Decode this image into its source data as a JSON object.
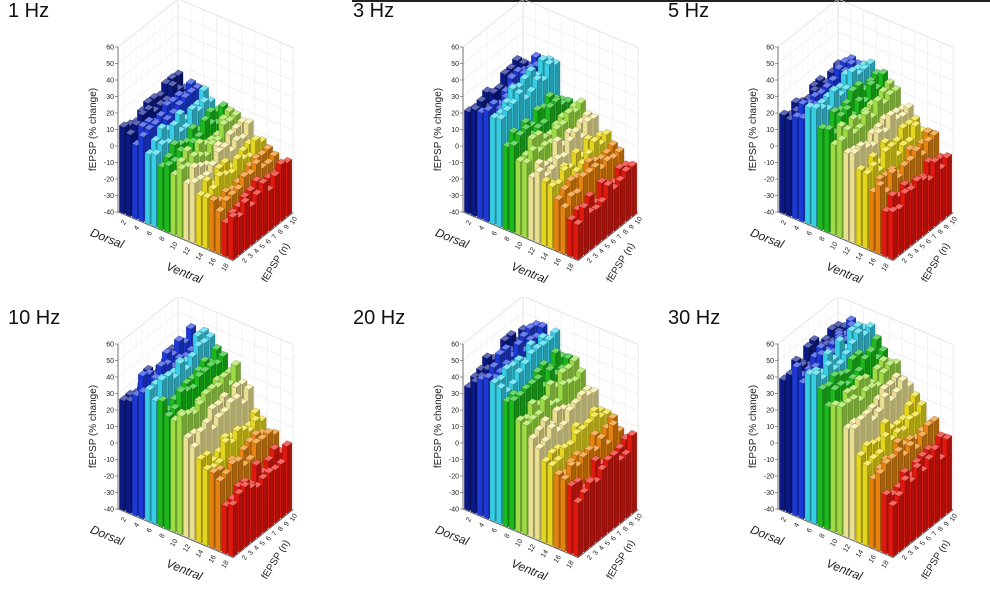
{
  "figure": {
    "panel_titles": [
      "1 Hz",
      "3 Hz",
      "5 Hz",
      "10 Hz",
      "20 Hz",
      "30 Hz"
    ]
  },
  "chart_data": {
    "type": "bar3d",
    "title": "",
    "axes": {
      "z_label": "fEPSP (% change)",
      "z_ticks": [
        "60",
        "50",
        "40",
        "30",
        "20",
        "10",
        "0",
        "-10",
        "-20",
        "-30",
        "-40"
      ],
      "zlim": [
        -40,
        60
      ],
      "x_ticks": [
        "2",
        "4",
        "6",
        "8",
        "10",
        "12",
        "14",
        "16",
        "18"
      ],
      "x_end_labels": [
        "Dorsal",
        "Ventral"
      ],
      "y_ticks": [
        "2",
        "3",
        "4",
        "5",
        "6",
        "7",
        "8",
        "9",
        "10"
      ],
      "y_label": "fEPSP (n)",
      "grid": true
    },
    "color_bands": [
      "#0a1a8c",
      "#1e3ce0",
      "#3ad8f0",
      "#1ec21e",
      "#a6e84a",
      "#f6ec9a",
      "#f0e020",
      "#f08a10",
      "#ec1a10"
    ],
    "profiles": [
      {
        "name": "1 Hz",
        "values": [
          13,
          11,
          9,
          5,
          2,
          -1,
          -4,
          -8,
          -12
        ]
      },
      {
        "name": "3 Hz",
        "values": [
          24,
          26,
          30,
          14,
          10,
          4,
          -2,
          -6,
          -14
        ]
      },
      {
        "name": "5 Hz",
        "values": [
          20,
          26,
          31,
          24,
          20,
          14,
          6,
          0,
          -8
        ]
      },
      {
        "name": "10 Hz",
        "values": [
          30,
          40,
          42,
          34,
          30,
          22,
          10,
          4,
          -6
        ]
      },
      {
        "name": "20 Hz",
        "values": [
          40,
          46,
          44,
          36,
          30,
          22,
          12,
          6,
          0
        ]
      },
      {
        "name": "30 Hz",
        "values": [
          44,
          48,
          50,
          42,
          36,
          28,
          16,
          8,
          -2
        ]
      }
    ]
  }
}
